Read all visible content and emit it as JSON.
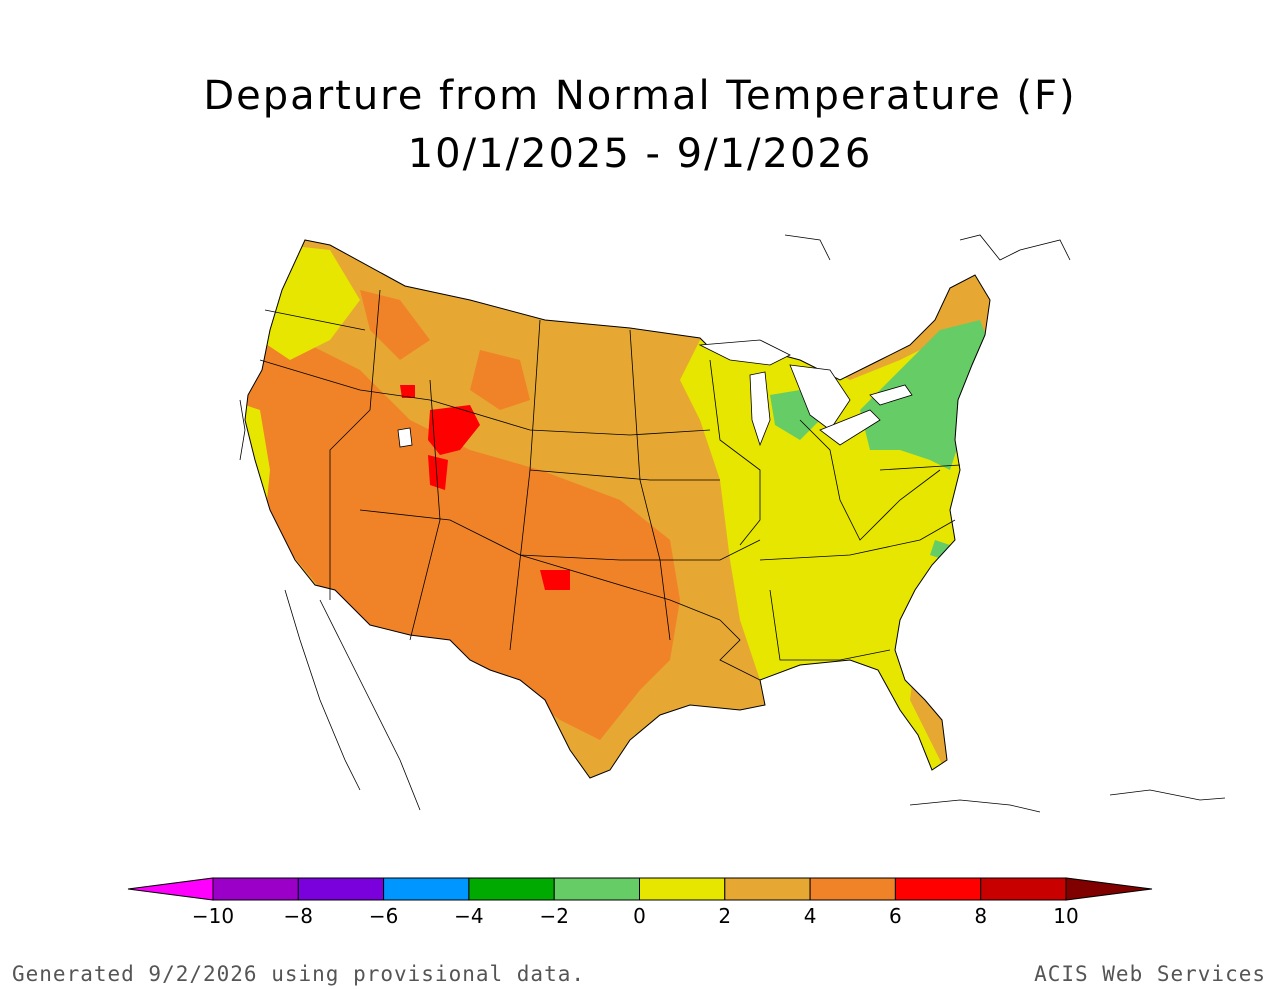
{
  "title": "Departure from Normal Temperature (F)",
  "date_range": "10/1/2025 - 9/1/2026",
  "legend": {
    "ticks": [
      "−10",
      "−8",
      "−6",
      "−4",
      "−2",
      "0",
      "2",
      "4",
      "6",
      "8",
      "10"
    ],
    "bins": [
      {
        "range": "< -10",
        "color": "#ff00ff"
      },
      {
        "range": "-10 to -8",
        "color": "#9b00c8"
      },
      {
        "range": "-8 to -6",
        "color": "#7a00dc"
      },
      {
        "range": "-6 to -4",
        "color": "#0096ff"
      },
      {
        "range": "-4 to -2",
        "color": "#00aa00"
      },
      {
        "range": "-2 to 0",
        "color": "#66cc66"
      },
      {
        "range": "0 to 2",
        "color": "#e6e600"
      },
      {
        "range": "2 to 4",
        "color": "#e6a832"
      },
      {
        "range": "4 to 6",
        "color": "#f08228"
      },
      {
        "range": "6 to 8",
        "color": "#ff0000"
      },
      {
        "range": "8 to 10",
        "color": "#c80000"
      },
      {
        "range": "> 10",
        "color": "#800000"
      }
    ]
  },
  "map": {
    "region": "Contiguous United States",
    "predominant_departure_by_region": {
      "west_and_southwest": "4 to 6",
      "northern_rockies_and_plains": "2 to 4",
      "utah_wyoming_core": "6 to 8",
      "midwest_and_southeast": "0 to 2",
      "northeast": "-2 to 0",
      "pacific_northwest_coast": "0 to 2"
    }
  },
  "footer": {
    "left": "Generated 9/2/2026 using provisional data.",
    "right": "ACIS Web Services"
  }
}
